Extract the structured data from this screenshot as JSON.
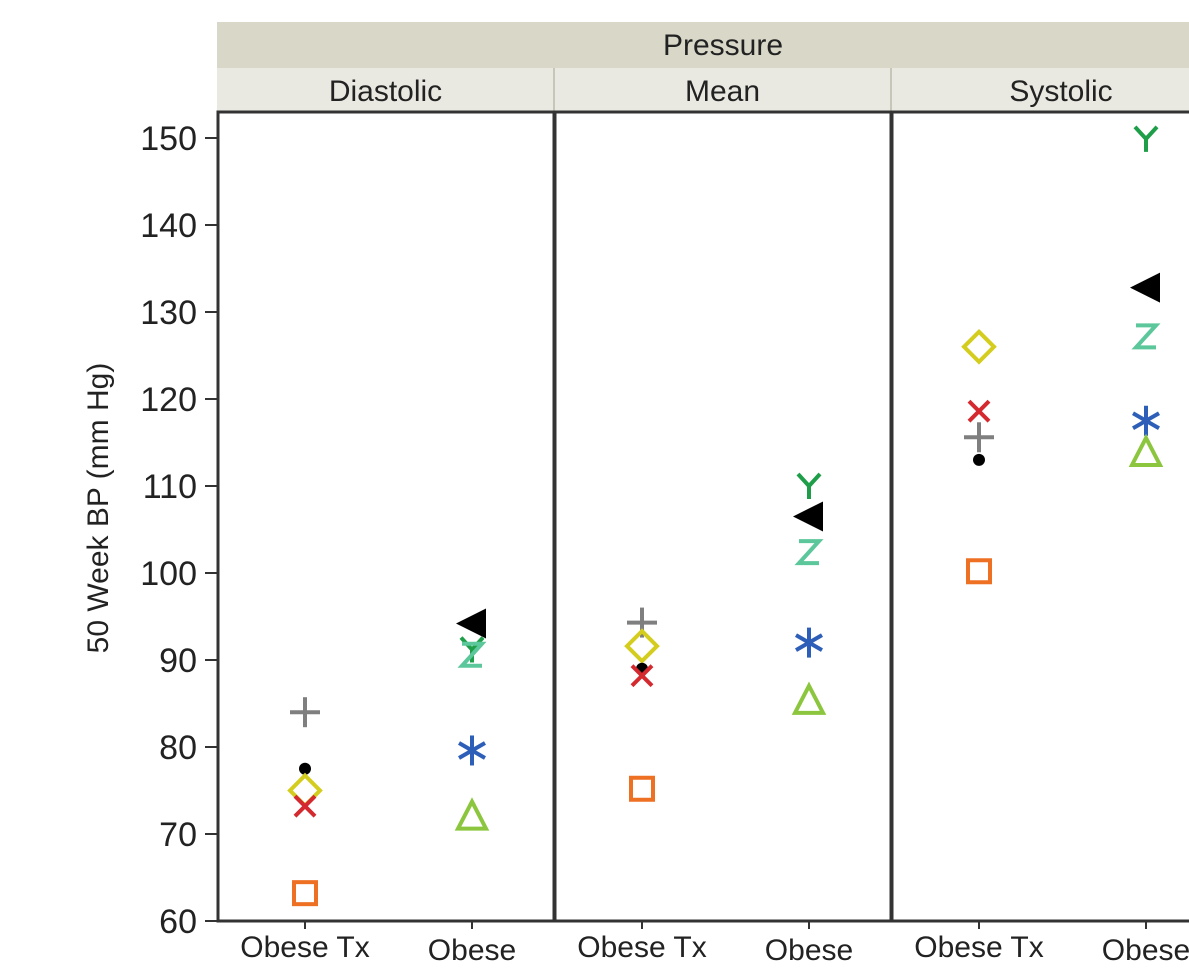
{
  "chart_data": {
    "type": "scatter",
    "title": "Pressure",
    "ylabel": "50 Week BP (mm Hg)",
    "ylim": [
      60,
      153
    ],
    "yticks": [
      60,
      70,
      80,
      90,
      100,
      110,
      120,
      130,
      140,
      150
    ],
    "categories": [
      "Obese Tx",
      "Obese"
    ],
    "panels": [
      {
        "name": "Diastolic",
        "points": [
          {
            "category": "Obese Tx",
            "y": 84.0,
            "marker": "plus",
            "color": "#7f7f7f"
          },
          {
            "category": "Obese Tx",
            "y": 77.5,
            "marker": "dot",
            "color": "#000000"
          },
          {
            "category": "Obese Tx",
            "y": 75.0,
            "marker": "diamond",
            "color": "#d4cd1e"
          },
          {
            "category": "Obese Tx",
            "y": 73.2,
            "marker": "x",
            "color": "#d42a2f"
          },
          {
            "category": "Obese Tx",
            "y": 63.2,
            "marker": "square",
            "color": "#ee7023"
          },
          {
            "category": "Obese",
            "y": 94.2,
            "marker": "triangle-left",
            "color": "#000000"
          },
          {
            "category": "Obese",
            "y": 91.2,
            "marker": "letter-y",
            "color": "#1e9e48"
          },
          {
            "category": "Obese",
            "y": 90.6,
            "marker": "letter-z",
            "color": "#5cc79a"
          },
          {
            "category": "Obese",
            "y": 79.6,
            "marker": "asterisk",
            "color": "#2e5fb8"
          },
          {
            "category": "Obese",
            "y": 72.0,
            "marker": "triangle-up",
            "color": "#8cc63e"
          }
        ]
      },
      {
        "name": "Mean",
        "points": [
          {
            "category": "Obese Tx",
            "y": 94.3,
            "marker": "plus",
            "color": "#7f7f7f"
          },
          {
            "category": "Obese Tx",
            "y": 91.6,
            "marker": "diamond",
            "color": "#d4cd1e"
          },
          {
            "category": "Obese Tx",
            "y": 89.0,
            "marker": "dot",
            "color": "#000000"
          },
          {
            "category": "Obese Tx",
            "y": 88.2,
            "marker": "x",
            "color": "#d42a2f"
          },
          {
            "category": "Obese Tx",
            "y": 75.2,
            "marker": "square",
            "color": "#ee7023"
          },
          {
            "category": "Obese",
            "y": 110.0,
            "marker": "letter-y",
            "color": "#1e9e48"
          },
          {
            "category": "Obese",
            "y": 106.5,
            "marker": "triangle-left",
            "color": "#000000"
          },
          {
            "category": "Obese",
            "y": 102.4,
            "marker": "letter-z",
            "color": "#5cc79a"
          },
          {
            "category": "Obese",
            "y": 92.0,
            "marker": "asterisk",
            "color": "#2e5fb8"
          },
          {
            "category": "Obese",
            "y": 85.3,
            "marker": "triangle-up",
            "color": "#8cc63e"
          }
        ]
      },
      {
        "name": "Systolic",
        "points": [
          {
            "category": "Obese Tx",
            "y": 126.0,
            "marker": "diamond",
            "color": "#d4cd1e"
          },
          {
            "category": "Obese Tx",
            "y": 118.6,
            "marker": "x",
            "color": "#d42a2f"
          },
          {
            "category": "Obese Tx",
            "y": 115.6,
            "marker": "plus",
            "color": "#7f7f7f"
          },
          {
            "category": "Obese Tx",
            "y": 113.0,
            "marker": "dot",
            "color": "#000000"
          },
          {
            "category": "Obese Tx",
            "y": 100.2,
            "marker": "square",
            "color": "#ee7023"
          },
          {
            "category": "Obese",
            "y": 149.9,
            "marker": "letter-y",
            "color": "#1e9e48"
          },
          {
            "category": "Obese",
            "y": 132.8,
            "marker": "triangle-left",
            "color": "#000000"
          },
          {
            "category": "Obese",
            "y": 127.2,
            "marker": "letter-z",
            "color": "#5cc79a"
          },
          {
            "category": "Obese",
            "y": 117.5,
            "marker": "asterisk",
            "color": "#2e5fb8"
          },
          {
            "category": "Obese",
            "y": 113.8,
            "marker": "triangle-up",
            "color": "#8cc63e"
          }
        ]
      }
    ],
    "grid": false,
    "header_color": "#d9d7c8",
    "subheader_color": "#eae9e1"
  }
}
